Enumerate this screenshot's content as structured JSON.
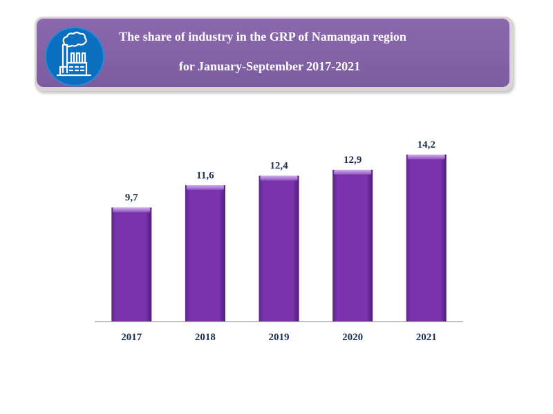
{
  "header": {
    "title_line1": "The share of industry in the GRP of Namangan region",
    "title_line2": "for January-September  2017-2021",
    "icon": "factory-icon"
  },
  "colors": {
    "bar": "#7a33ab",
    "bar_dark": "#5a1f86",
    "bar_top": "#b58ad8",
    "banner": "#7f5fa3",
    "logo": "#0b6fc0"
  },
  "chart_data": {
    "type": "bar",
    "title": "The share of industry in the GRP of Namangan region for January-September 2017-2021",
    "categories": [
      "2017",
      "2018",
      "2019",
      "2020",
      "2021"
    ],
    "values": [
      9.7,
      11.6,
      12.4,
      12.9,
      14.2
    ],
    "value_labels": [
      "9,7",
      "11,6",
      "12,4",
      "12,9",
      "14,2"
    ],
    "xlabel": "",
    "ylabel": "",
    "ylim": [
      0,
      14.2
    ],
    "grid": false,
    "legend": "none"
  }
}
